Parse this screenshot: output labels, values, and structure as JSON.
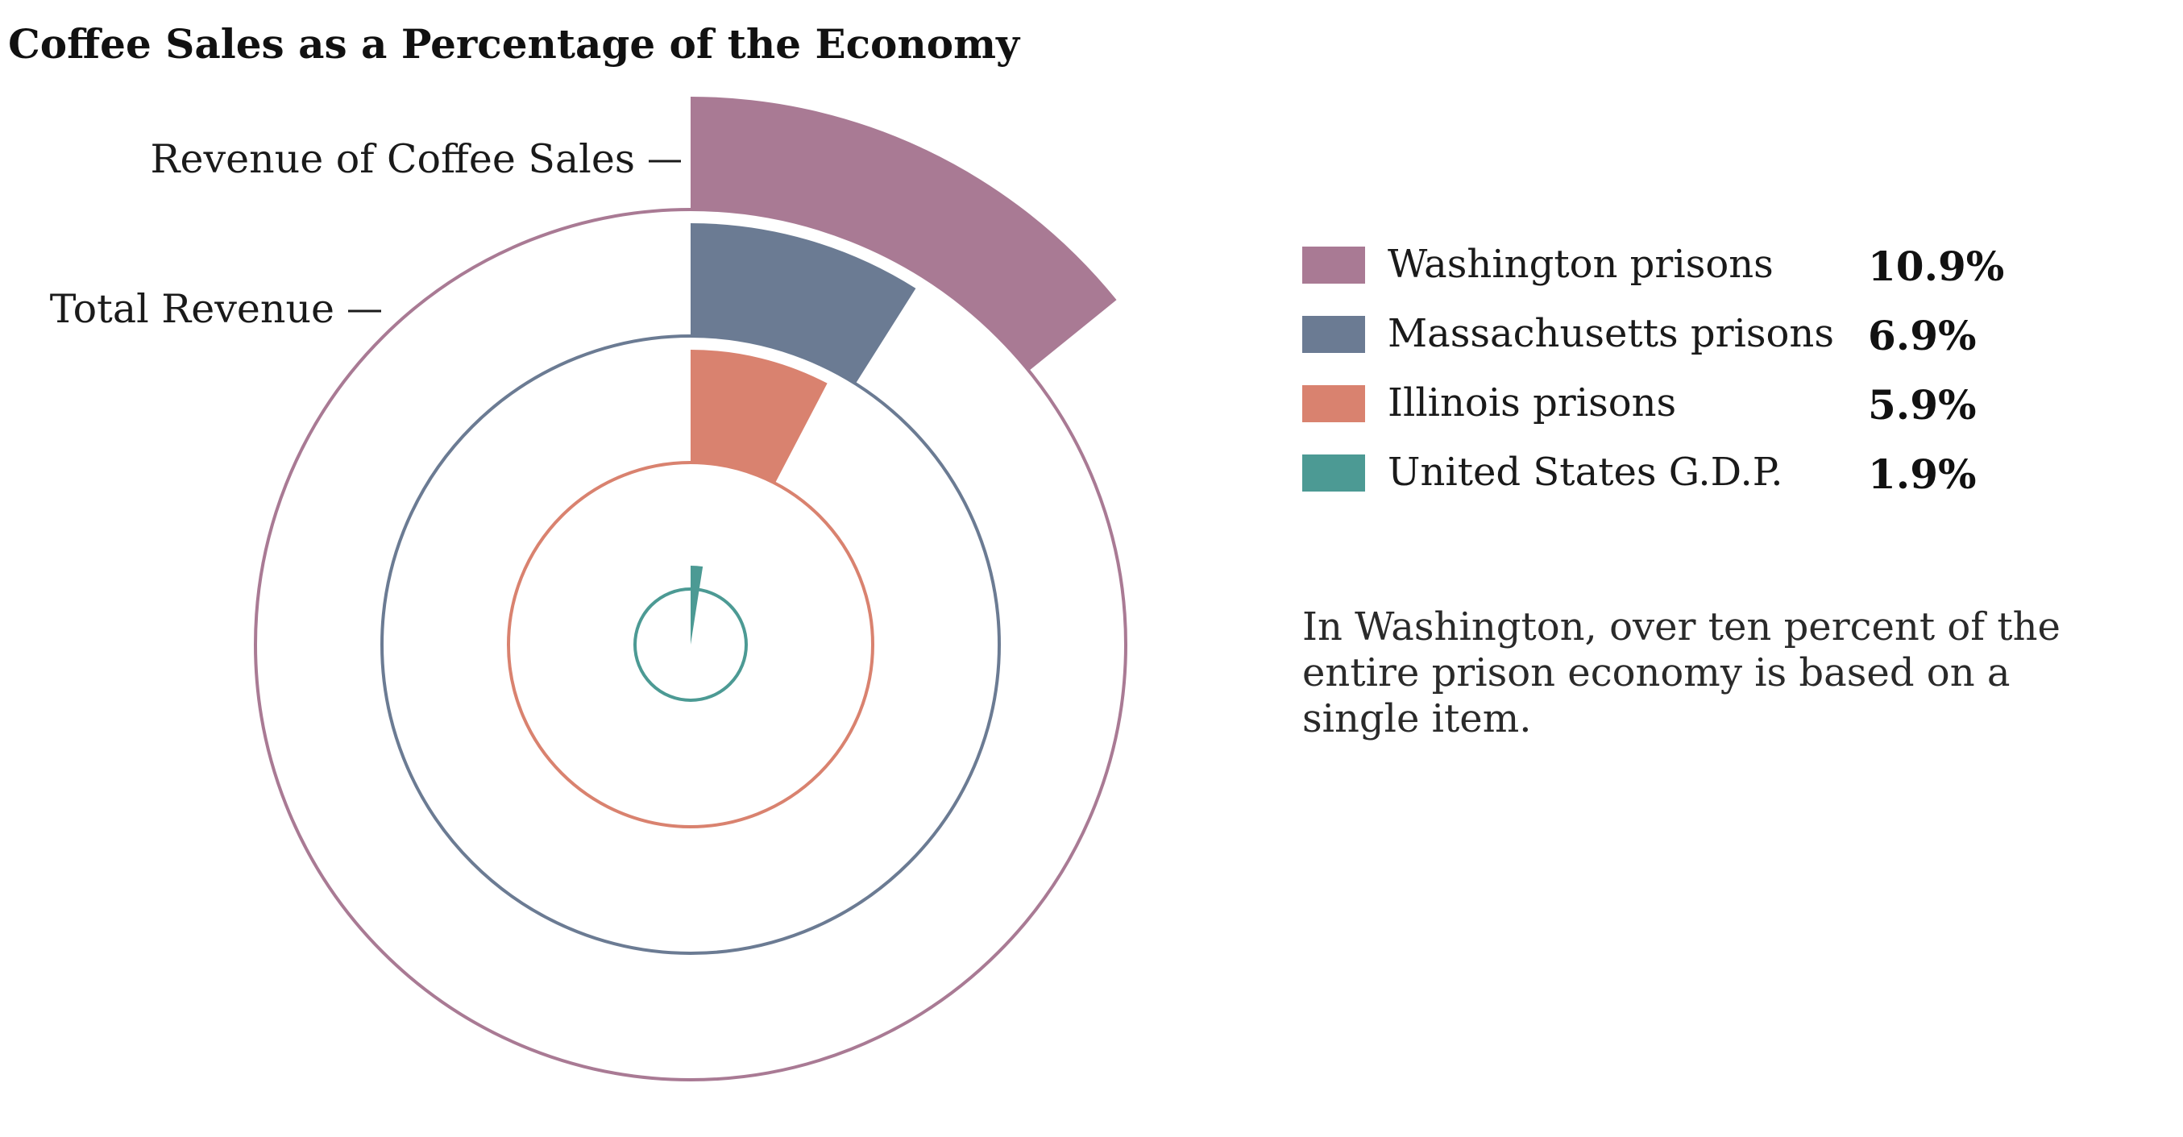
{
  "chart_data": {
    "type": "radial-bar",
    "title": "Coffee Sales as a Percentage of the Economy",
    "labels": {
      "outer_bar_label": "Revenue of Coffee Sales",
      "outer_ring_label": "Total Revenue"
    },
    "series": [
      {
        "name": "Washington prisons",
        "value": 10.9,
        "value_label": "10.9%",
        "color": "#a97a94"
      },
      {
        "name": "Massachusetts prisons",
        "value": 6.9,
        "value_label": "6.9%",
        "color": "#6b7b93"
      },
      {
        "name": "Illinois prisons",
        "value": 5.9,
        "value_label": "5.9%",
        "color": "#d9826f"
      },
      {
        "name": "United States G.D.P.",
        "value": 1.9,
        "value_label": "1.9%",
        "color": "#4c9a94"
      }
    ],
    "legend_position": "right"
  },
  "annotation": "In Washington, over ten percent of the entire prison economy is based on a single item."
}
